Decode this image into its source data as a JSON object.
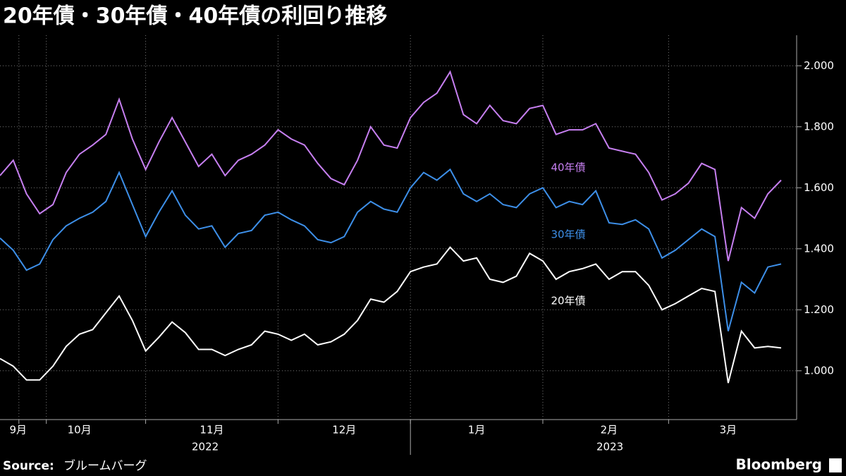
{
  "chart_data": {
    "type": "line",
    "title": "20年債・30年債・40年債の利回り推移",
    "categories": [
      null,
      "9月",
      null,
      null,
      null,
      null,
      "10月",
      null,
      null,
      null,
      null,
      null,
      null,
      null,
      null,
      null,
      "11月",
      null,
      null,
      null,
      null,
      null,
      null,
      null,
      null,
      null,
      "12月",
      null,
      null,
      null,
      null,
      null,
      null,
      null,
      null,
      null,
      "1月",
      null,
      null,
      null,
      null,
      null,
      null,
      null,
      null,
      null,
      "2月",
      null,
      null,
      null,
      null,
      null,
      null,
      null,
      null,
      "3月",
      null,
      null,
      null,
      null
    ],
    "years": [
      "2022",
      "2023"
    ],
    "series": [
      {
        "name": "40年債",
        "color": "#c67ff0",
        "values": [
          1.64,
          1.69,
          1.58,
          1.515,
          1.545,
          1.65,
          1.71,
          1.74,
          1.775,
          1.89,
          1.76,
          1.66,
          1.75,
          1.83,
          1.75,
          1.67,
          1.71,
          1.64,
          1.69,
          1.71,
          1.74,
          1.79,
          1.76,
          1.74,
          1.68,
          1.63,
          1.61,
          1.69,
          1.8,
          1.74,
          1.73,
          1.83,
          1.88,
          1.91,
          1.98,
          1.84,
          1.81,
          1.87,
          1.82,
          1.81,
          1.86,
          1.87,
          1.775,
          1.79,
          1.79,
          1.81,
          1.73,
          1.72,
          1.71,
          1.65,
          1.56,
          1.58,
          1.615,
          1.68,
          1.66,
          1.36,
          1.535,
          1.5,
          1.58,
          1.625
        ]
      },
      {
        "name": "30年債",
        "color": "#3d8fe8",
        "values": [
          1.435,
          1.395,
          1.33,
          1.35,
          1.43,
          1.475,
          1.5,
          1.52,
          1.555,
          1.65,
          1.545,
          1.44,
          1.52,
          1.59,
          1.51,
          1.465,
          1.475,
          1.405,
          1.45,
          1.46,
          1.51,
          1.52,
          1.495,
          1.475,
          1.43,
          1.42,
          1.44,
          1.52,
          1.555,
          1.53,
          1.52,
          1.6,
          1.65,
          1.625,
          1.66,
          1.58,
          1.555,
          1.58,
          1.545,
          1.535,
          1.58,
          1.6,
          1.535,
          1.555,
          1.545,
          1.59,
          1.485,
          1.48,
          1.495,
          1.465,
          1.37,
          1.395,
          1.43,
          1.465,
          1.44,
          1.13,
          1.29,
          1.255,
          1.34,
          1.35
        ]
      },
      {
        "name": "20年債",
        "color": "#ffffff",
        "values": [
          1.04,
          1.015,
          0.97,
          0.97,
          1.015,
          1.08,
          1.12,
          1.135,
          1.19,
          1.245,
          1.165,
          1.065,
          1.11,
          1.16,
          1.125,
          1.07,
          1.07,
          1.05,
          1.07,
          1.085,
          1.13,
          1.12,
          1.1,
          1.12,
          1.085,
          1.095,
          1.12,
          1.165,
          1.235,
          1.225,
          1.26,
          1.325,
          1.34,
          1.35,
          1.405,
          1.36,
          1.37,
          1.3,
          1.29,
          1.31,
          1.385,
          1.36,
          1.3,
          1.325,
          1.335,
          1.35,
          1.3,
          1.325,
          1.325,
          1.28,
          1.2,
          1.22,
          1.245,
          1.27,
          1.26,
          0.96,
          1.13,
          1.075,
          1.08,
          1.075
        ]
      }
    ],
    "ylim": [
      0.84,
      2.1
    ],
    "yticks": [
      {
        "value": 1.0,
        "label": "1.000"
      },
      {
        "value": 1.2,
        "label": "1.200"
      },
      {
        "value": 1.4,
        "label": "1.400"
      },
      {
        "value": 1.6,
        "label": "1.600"
      },
      {
        "value": 1.8,
        "label": "1.800"
      },
      {
        "value": 2.0,
        "label": "2.000"
      }
    ],
    "grid": true,
    "source_label": "Source:",
    "source": "ブルームバーグ",
    "logo": "Bloomberg"
  }
}
